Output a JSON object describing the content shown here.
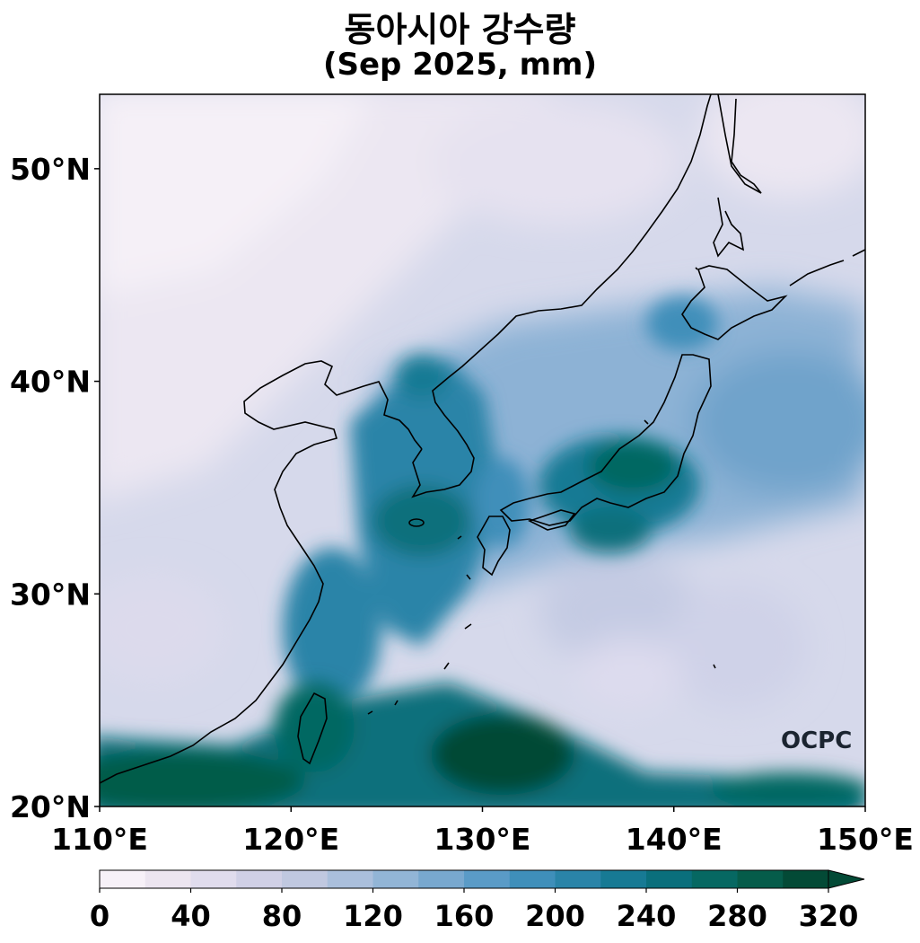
{
  "title": "동아시아 강수량",
  "subtitle": "(Sep 2025, mm)",
  "watermark": "OCPC",
  "map": {
    "lon_range": [
      110,
      150
    ],
    "lat_range": [
      20,
      53.5
    ],
    "x_ticks": [
      "110°E",
      "120°E",
      "130°E",
      "140°E",
      "150°E"
    ],
    "y_ticks": [
      "20°N",
      "30°N",
      "40°N",
      "50°N"
    ]
  },
  "colorbar": {
    "ticks": [
      "0",
      "40",
      "80",
      "120",
      "160",
      "200",
      "240",
      "280",
      "320"
    ],
    "min": 0,
    "max": 320,
    "step": 20,
    "extend": "max",
    "colors": [
      "#f7f1f8",
      "#ece5f0",
      "#e0dced",
      "#d0d0e6",
      "#c0c8e0",
      "#aabfdc",
      "#92b5d6",
      "#78a8cf",
      "#5a9bc7",
      "#3f8fba",
      "#2a84a8",
      "#177a94",
      "#0a6f7c",
      "#066862",
      "#055c4a",
      "#034a36"
    ]
  }
}
